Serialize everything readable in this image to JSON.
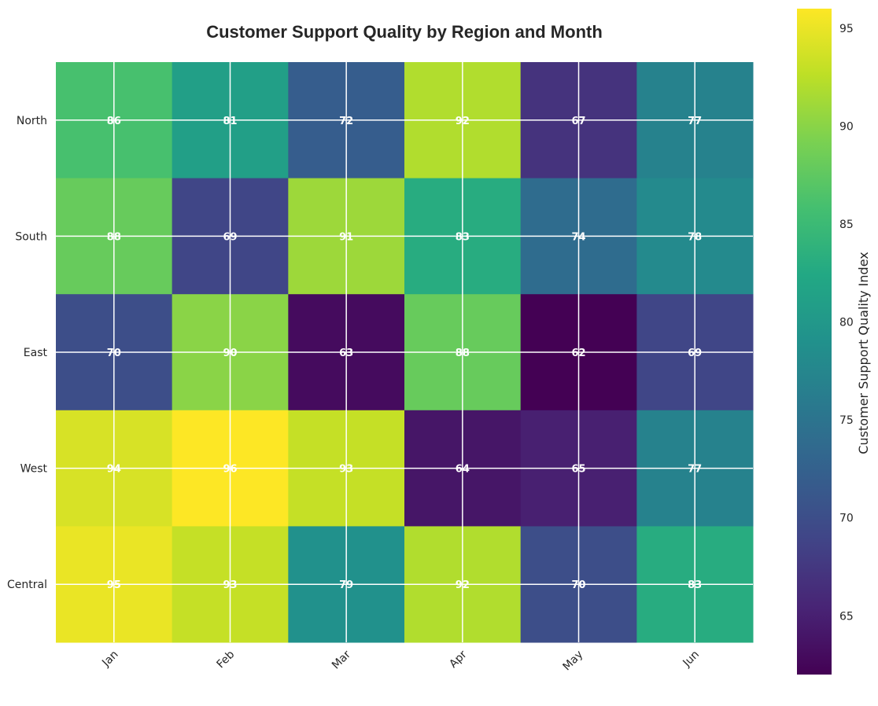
{
  "chart_data": {
    "type": "heatmap",
    "title": "Customer Support Quality by Region and Month",
    "x_categories": [
      "Jan",
      "Feb",
      "Mar",
      "Apr",
      "May",
      "Jun"
    ],
    "y_categories": [
      "North",
      "South",
      "East",
      "West",
      "Central"
    ],
    "values": [
      [
        86,
        81,
        72,
        92,
        67,
        77
      ],
      [
        88,
        69,
        91,
        83,
        74,
        78
      ],
      [
        70,
        90,
        63,
        88,
        62,
        69
      ],
      [
        94,
        96,
        93,
        64,
        65,
        77
      ],
      [
        95,
        93,
        79,
        92,
        70,
        83
      ]
    ],
    "colorbar": {
      "label": "Customer Support Quality Index",
      "range": [
        62,
        96
      ],
      "ticks": [
        65,
        70,
        75,
        80,
        85,
        90,
        95
      ]
    },
    "colormap": "viridis",
    "annotations": "values shown in cells",
    "grid": true
  }
}
